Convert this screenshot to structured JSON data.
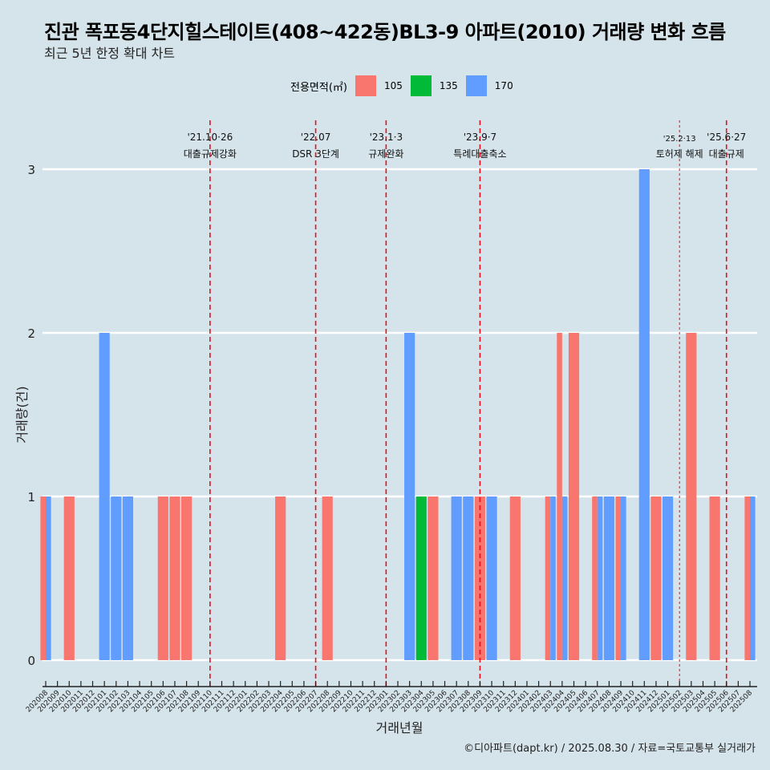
{
  "header": {
    "title": "진관 폭포동4단지힐스테이트(408~422동)BL3-9 아파트(2010) 거래량 변화 흐름",
    "subtitle": "최근 5년 한정 확대 차트"
  },
  "legend": {
    "title": "전용면적(㎡)",
    "items": [
      {
        "label": "105",
        "color": "#f8766d"
      },
      {
        "label": "135",
        "color": "#00ba38"
      },
      {
        "label": "170",
        "color": "#619cff"
      }
    ]
  },
  "caption": "©디아파트(dapt.kr) / 2025.08.30 / 자료=국토교통부 실거래가",
  "chart_data": {
    "type": "bar",
    "title": "진관 폭포동4단지힐스테이트(408~422동)BL3-9 아파트(2010) 거래량 변화 흐름",
    "subtitle": "최근 5년 한정 확대 차트",
    "xlabel": "거래년월",
    "ylabel": "거래량(건)",
    "ylim": [
      0,
      3
    ],
    "yticks": [
      0,
      1,
      2,
      3
    ],
    "grid": true,
    "legend_position": "top",
    "categories": [
      "202008",
      "202009",
      "202010",
      "202011",
      "202012",
      "202101",
      "202102",
      "202103",
      "202104",
      "202105",
      "202106",
      "202107",
      "202108",
      "202109",
      "202110",
      "202111",
      "202112",
      "202201",
      "202202",
      "202203",
      "202204",
      "202205",
      "202206",
      "202207",
      "202208",
      "202209",
      "202210",
      "202211",
      "202212",
      "202301",
      "202302",
      "202303",
      "202304",
      "202305",
      "202306",
      "202307",
      "202308",
      "202309",
      "202310",
      "202311",
      "202312",
      "202401",
      "202402",
      "202403",
      "202404",
      "202405",
      "202406",
      "202407",
      "202408",
      "202409",
      "202410",
      "202411",
      "202412",
      "202501",
      "202502",
      "202503",
      "202504",
      "202505",
      "202506",
      "202507",
      "202508"
    ],
    "series": [
      {
        "name": "105",
        "color": "#f8766d",
        "values": [
          1,
          0,
          1,
          0,
          0,
          0,
          0,
          0,
          0,
          0,
          1,
          1,
          1,
          0,
          0,
          0,
          0,
          0,
          0,
          0,
          1,
          0,
          0,
          0,
          1,
          0,
          0,
          0,
          0,
          0,
          0,
          0,
          0,
          1,
          0,
          0,
          0,
          1,
          0,
          0,
          1,
          0,
          0,
          1,
          2,
          2,
          0,
          1,
          0,
          1,
          0,
          0,
          1,
          0,
          0,
          2,
          0,
          1,
          0,
          0,
          1
        ]
      },
      {
        "name": "135",
        "color": "#00ba38",
        "values": [
          0,
          0,
          0,
          0,
          0,
          0,
          0,
          0,
          0,
          0,
          0,
          0,
          0,
          0,
          0,
          0,
          0,
          0,
          0,
          0,
          0,
          0,
          0,
          0,
          0,
          0,
          0,
          0,
          0,
          0,
          0,
          0,
          1,
          0,
          0,
          0,
          0,
          0,
          0,
          0,
          0,
          0,
          0,
          0,
          0,
          0,
          0,
          0,
          0,
          0,
          0,
          0,
          0,
          0,
          0,
          0,
          0,
          0,
          0,
          0,
          0
        ]
      },
      {
        "name": "170",
        "color": "#619cff",
        "values": [
          1,
          0,
          0,
          0,
          0,
          2,
          1,
          1,
          0,
          0,
          0,
          0,
          0,
          0,
          0,
          0,
          0,
          0,
          0,
          0,
          0,
          0,
          0,
          0,
          0,
          0,
          0,
          0,
          0,
          0,
          0,
          2,
          0,
          0,
          0,
          1,
          1,
          0,
          1,
          0,
          0,
          0,
          0,
          1,
          1,
          0,
          0,
          1,
          1,
          1,
          0,
          3,
          0,
          1,
          0,
          0,
          0,
          0,
          0,
          0,
          1
        ]
      }
    ],
    "annotations": [
      {
        "month": "202110",
        "date": "'21.10·26",
        "label": "대출규제강화",
        "style": "dashed"
      },
      {
        "month": "202207",
        "date": "'22.07",
        "label": "DSR 3단계",
        "style": "dashed"
      },
      {
        "month": "202301",
        "date": "'23.1·3",
        "label": "규제완화",
        "style": "dashed"
      },
      {
        "month": "202309",
        "date": "'23.9·7",
        "label": "특례대출축소",
        "style": "dashed"
      },
      {
        "month": "202502",
        "date": "'25.2·13",
        "label": "토허제 해제",
        "style": "dotted"
      },
      {
        "month": "202506",
        "date": "'25.6·27",
        "label": "대출규제",
        "style": "dashed"
      }
    ]
  }
}
